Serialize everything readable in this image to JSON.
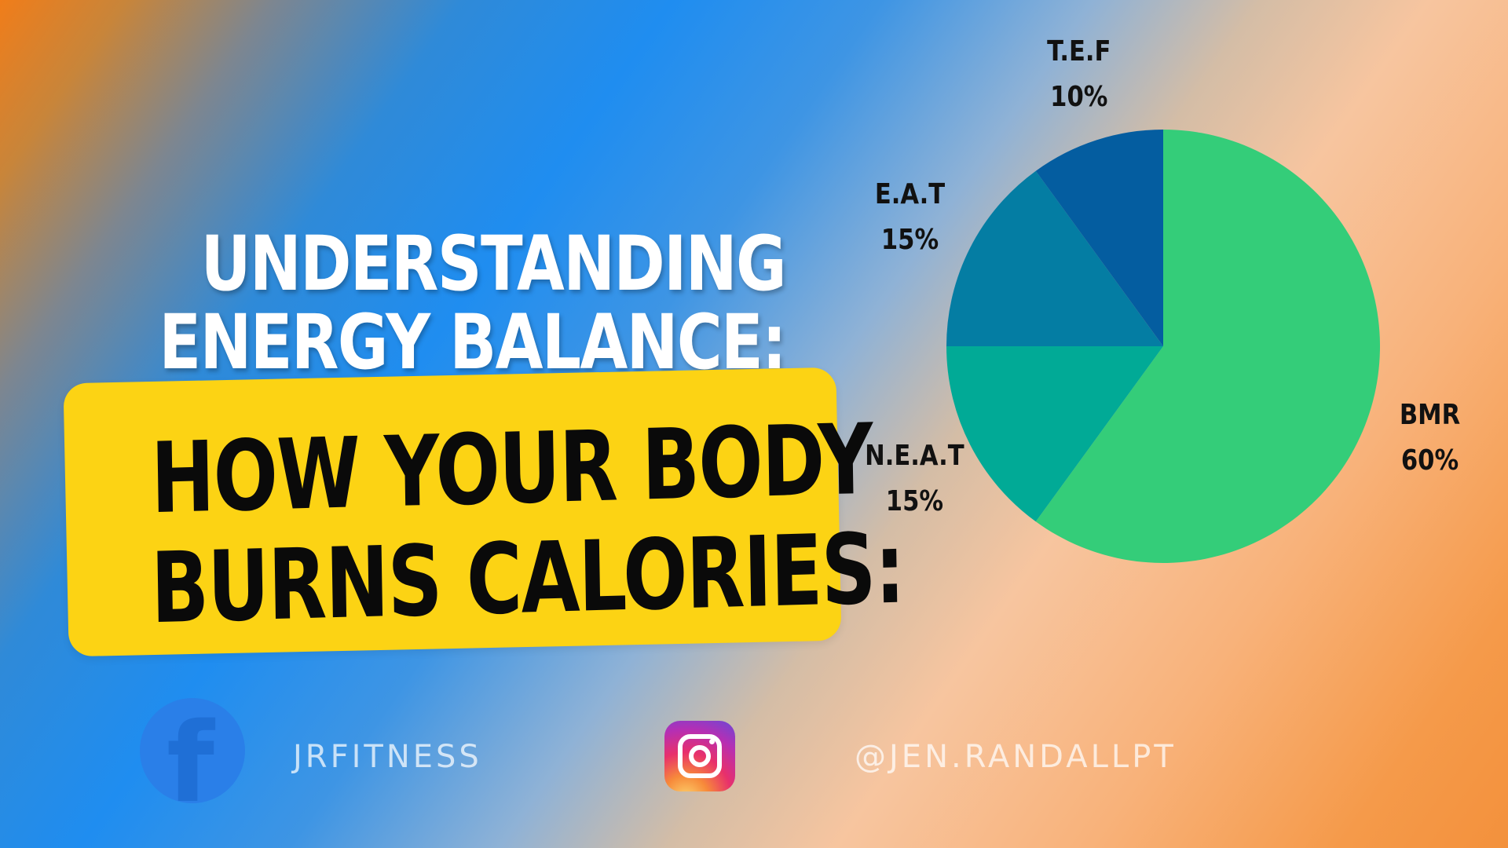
{
  "title": {
    "line1": "UNDERSTANDING",
    "line2": "ENERGY BALANCE:"
  },
  "callout": {
    "line1": "HOW YOUR BODY",
    "line2": "BURNS CALORIES:"
  },
  "social": {
    "facebook_icon": "facebook-icon",
    "facebook_handle": "JRFITNESS",
    "instagram_icon": "instagram-icon",
    "instagram_handle": "@JEN.RANDALLPT"
  },
  "colors": {
    "callout_bg": "#fcd314",
    "bmr": "#34cd79",
    "neat": "#01aa96",
    "eat": "#047da3",
    "tef": "#045da0"
  },
  "chart_data": {
    "type": "pie",
    "title": "",
    "start_angle": "12 o'clock, clockwise",
    "legend": "none (labels beside slices)",
    "slices": [
      {
        "label": "BMR",
        "value": 60,
        "value_label": "60%",
        "color": "#34cd79"
      },
      {
        "label": "N.E.A.T",
        "value": 15,
        "value_label": "15%",
        "color": "#01aa96"
      },
      {
        "label": "E.A.T",
        "value": 15,
        "value_label": "15%",
        "color": "#047da3"
      },
      {
        "label": "T.E.F",
        "value": 10,
        "value_label": "10%",
        "color": "#045da0"
      }
    ]
  }
}
